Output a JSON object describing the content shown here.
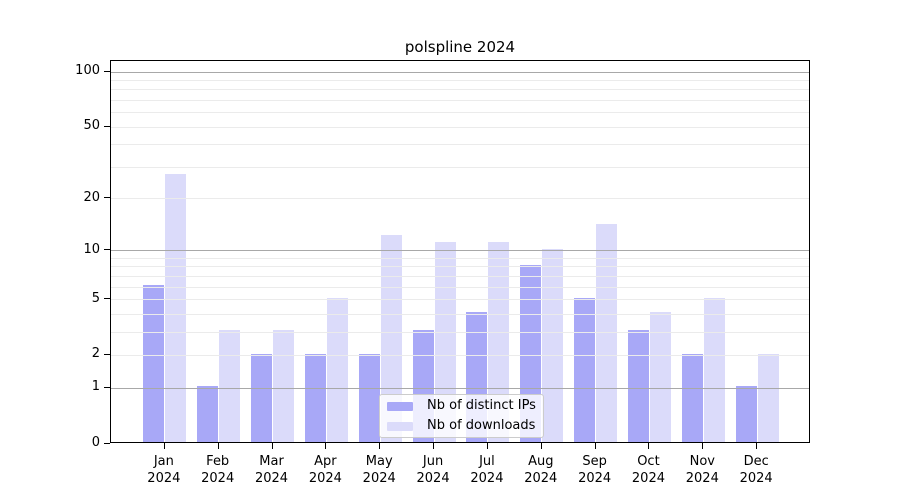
{
  "title": "polspline 2024",
  "chart_data": {
    "type": "bar",
    "title": "polspline 2024",
    "categories": [
      "Jan",
      "Feb",
      "Mar",
      "Apr",
      "May",
      "Jun",
      "Jul",
      "Aug",
      "Sep",
      "Oct",
      "Nov",
      "Dec"
    ],
    "year": "2024",
    "series": [
      {
        "name": "Nb of distinct IPs",
        "color": "#a8a8f7",
        "values": [
          6,
          1,
          2,
          2,
          2,
          3,
          4,
          8,
          5,
          3,
          2,
          1
        ]
      },
      {
        "name": "Nb of downloads",
        "color": "#dbdbfa",
        "values": [
          27,
          3,
          3,
          5,
          12,
          11,
          11,
          10,
          14,
          4,
          5,
          2
        ]
      }
    ],
    "yscale": "log1p",
    "ylim": [
      0,
      115
    ],
    "yticks": [
      0,
      1,
      2,
      5,
      10,
      20,
      50,
      100
    ],
    "major_gridlines": [
      1,
      10,
      100
    ],
    "minor_gridlines": [
      2,
      3,
      4,
      5,
      6,
      7,
      8,
      9,
      20,
      30,
      40,
      50,
      60,
      70,
      80,
      90
    ],
    "grid": true,
    "legend_position": "lower center"
  },
  "colors": {
    "bar_distinct_ips": "#a8a8f7",
    "bar_downloads": "#dbdbfa",
    "grid_major": "#a8a8a8",
    "grid_minor": "#ebebeb",
    "axis": "#000000",
    "background": "#ffffff",
    "legend_border": "#cccccc"
  }
}
